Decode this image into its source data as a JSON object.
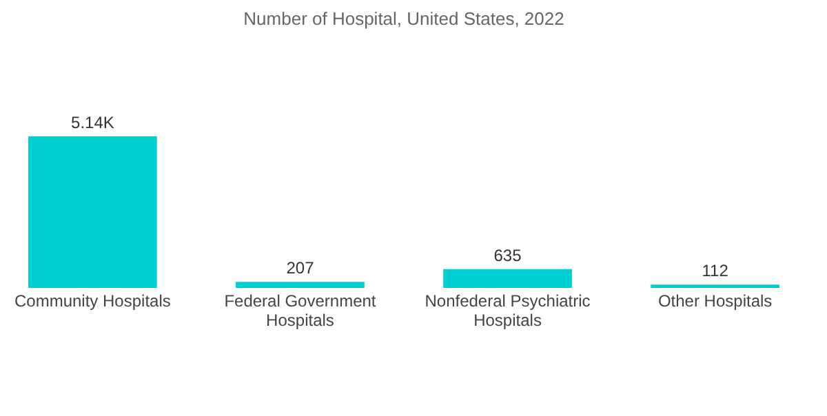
{
  "chart_data": {
    "type": "bar",
    "title": "Number of Hospital, United States, 2022",
    "categories": [
      "Community Hospitals",
      "Federal Government Hospitals",
      "Nonfederal Psychiatric Hospitals",
      "Other Hospitals"
    ],
    "values": [
      5140,
      207,
      635,
      112
    ],
    "value_labels": [
      "5.14K",
      "207",
      "635",
      "112"
    ],
    "color": "#00ced1",
    "grid": false
  }
}
